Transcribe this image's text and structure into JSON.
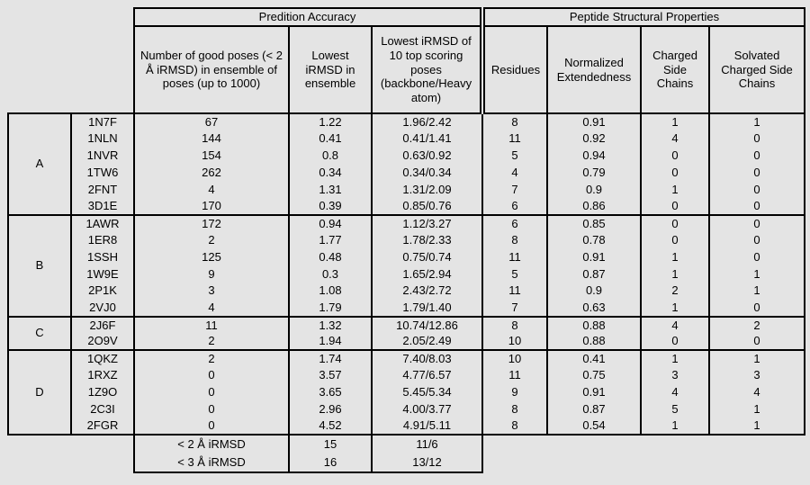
{
  "page": {
    "background": "#e4e4e4",
    "border_color": "#000000"
  },
  "header": {
    "group1": "Predition Accuracy",
    "group2": "Peptide Structural Properties",
    "columns": [
      "Number of good poses (< 2 Å iRMSD) in ensemble of poses (up to 1000)",
      "Lowest iRMSD in ensemble",
      "Lowest iRMSD of 10 top scoring poses (backbone/Heavy atom)",
      "Residues",
      "Normalized Extendedness",
      "Charged Side Chains",
      "Solvated Charged Side Chains"
    ]
  },
  "groups": [
    {
      "label": "A",
      "rows": [
        [
          "1N7F",
          "67",
          "1.22",
          "1.96/2.42",
          "8",
          "0.91",
          "1",
          "1"
        ],
        [
          "1NLN",
          "144",
          "0.41",
          "0.41/1.41",
          "11",
          "0.92",
          "4",
          "0"
        ],
        [
          "1NVR",
          "154",
          "0.8",
          "0.63/0.92",
          "5",
          "0.94",
          "0",
          "0"
        ],
        [
          "1TW6",
          "262",
          "0.34",
          "0.34/0.34",
          "4",
          "0.79",
          "0",
          "0"
        ],
        [
          "2FNT",
          "4",
          "1.31",
          "1.31/2.09",
          "7",
          "0.9",
          "1",
          "0"
        ],
        [
          "3D1E",
          "170",
          "0.39",
          "0.85/0.76",
          "6",
          "0.86",
          "0",
          "0"
        ]
      ]
    },
    {
      "label": "B",
      "rows": [
        [
          "1AWR",
          "172",
          "0.94",
          "1.12/3.27",
          "6",
          "0.85",
          "0",
          "0"
        ],
        [
          "1ER8",
          "2",
          "1.77",
          "1.78/2.33",
          "8",
          "0.78",
          "0",
          "0"
        ],
        [
          "1SSH",
          "125",
          "0.48",
          "0.75/0.74",
          "11",
          "0.91",
          "1",
          "0"
        ],
        [
          "1W9E",
          "9",
          "0.3",
          "1.65/2.94",
          "5",
          "0.87",
          "1",
          "1"
        ],
        [
          "2P1K",
          "3",
          "1.08",
          "2.43/2.72",
          "11",
          "0.9",
          "2",
          "1"
        ],
        [
          "2VJ0",
          "4",
          "1.79",
          "1.79/1.40",
          "7",
          "0.63",
          "1",
          "0"
        ]
      ]
    },
    {
      "label": "C",
      "rows": [
        [
          "2J6F",
          "11",
          "1.32",
          "10.74/12.86",
          "8",
          "0.88",
          "4",
          "2"
        ],
        [
          "2O9V",
          "2",
          "1.94",
          "2.05/2.49",
          "10",
          "0.88",
          "0",
          "0"
        ]
      ]
    },
    {
      "label": "D",
      "rows": [
        [
          "1QKZ",
          "2",
          "1.74",
          "7.40/8.03",
          "10",
          "0.41",
          "1",
          "1"
        ],
        [
          "1RXZ",
          "0",
          "3.57",
          "4.77/6.57",
          "11",
          "0.75",
          "3",
          "3"
        ],
        [
          "1Z9O",
          "0",
          "3.65",
          "5.45/5.34",
          "9",
          "0.91",
          "4",
          "4"
        ],
        [
          "2C3I",
          "0",
          "2.96",
          "4.00/3.77",
          "8",
          "0.87",
          "5",
          "1"
        ],
        [
          "2FGR",
          "0",
          "4.52",
          "4.91/5.11",
          "8",
          "0.54",
          "1",
          "1"
        ]
      ]
    }
  ],
  "summary": [
    {
      "label": "< 2 Å iRMSD",
      "ensemble": "15",
      "top10": "11/6"
    },
    {
      "label": "< 3 Å iRMSD",
      "ensemble": "16",
      "top10": "13/12"
    }
  ]
}
